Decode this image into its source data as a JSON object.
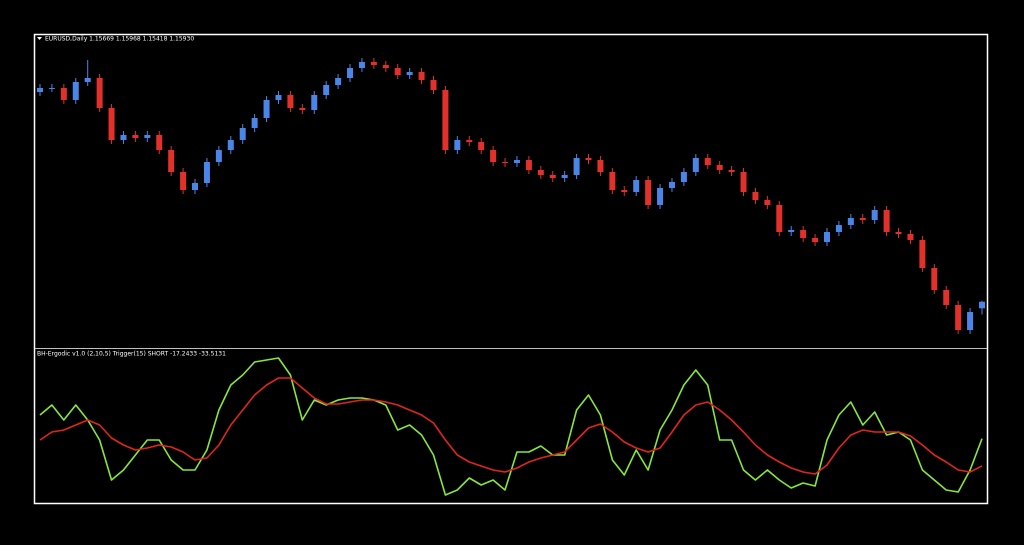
{
  "chart_data": [
    {
      "type": "candlestick",
      "title": "EURUSD,Daily  1.15669 1.15968 1.15418 1.15930",
      "up_color": "#4a86e8",
      "down_color": "#e2302a",
      "ylim": [
        1.1408,
        1.266
      ],
      "open": [
        1.2432,
        1.2448,
        1.2448,
        1.24,
        1.2472,
        1.2488,
        1.2368,
        1.224,
        1.226,
        1.2248,
        1.226,
        1.22,
        1.2112,
        1.204,
        1.2068,
        1.2152,
        1.22,
        1.224,
        1.2288,
        1.2328,
        1.24,
        1.242,
        1.2368,
        1.236,
        1.242,
        1.246,
        1.2488,
        1.2528,
        1.2552,
        1.254,
        1.2528,
        1.25,
        1.2512,
        1.248,
        1.244,
        1.22,
        1.224,
        1.2232,
        1.22,
        1.2152,
        1.2148,
        1.216,
        1.212,
        1.21,
        1.2088,
        1.21,
        1.2168,
        1.216,
        1.2112,
        1.204,
        1.2032,
        1.208,
        1.198,
        1.2048,
        1.2072,
        1.2112,
        1.2168,
        1.214,
        1.212,
        1.2112,
        1.2032,
        1.2,
        1.198,
        1.1872,
        1.188,
        1.1848,
        1.1832,
        1.1872,
        1.19,
        1.1928,
        1.192,
        1.196,
        1.1872,
        1.1864,
        1.184,
        1.1728,
        1.164,
        1.158,
        1.148,
        1.15669
      ],
      "high": [
        1.2464,
        1.2464,
        1.2464,
        1.2488,
        1.256,
        1.2504,
        1.2384,
        1.2276,
        1.2276,
        1.2276,
        1.2276,
        1.2216,
        1.2128,
        1.2084,
        1.2168,
        1.2216,
        1.2256,
        1.2304,
        1.2344,
        1.2416,
        1.2436,
        1.2436,
        1.2384,
        1.2436,
        1.2476,
        1.2504,
        1.2544,
        1.2568,
        1.2568,
        1.2556,
        1.2544,
        1.2528,
        1.2528,
        1.2496,
        1.2456,
        1.2256,
        1.2256,
        1.2248,
        1.2216,
        1.2168,
        1.2176,
        1.2176,
        1.2136,
        1.2116,
        1.2116,
        1.2184,
        1.2184,
        1.2176,
        1.2128,
        1.2056,
        1.2096,
        1.2096,
        1.2064,
        1.2088,
        1.2128,
        1.2184,
        1.2184,
        1.2156,
        1.2136,
        1.2128,
        1.2048,
        1.2016,
        1.1996,
        1.1896,
        1.1896,
        1.1864,
        1.1888,
        1.1916,
        1.1944,
        1.1944,
        1.1976,
        1.1976,
        1.1888,
        1.188,
        1.1856,
        1.1744,
        1.1656,
        1.1596,
        1.1568,
        1.15968
      ],
      "low": [
        1.2416,
        1.2432,
        1.2384,
        1.2384,
        1.2456,
        1.2352,
        1.2224,
        1.2224,
        1.2232,
        1.2232,
        1.2184,
        1.2096,
        1.2024,
        1.2024,
        1.2052,
        1.2136,
        1.2184,
        1.2224,
        1.2272,
        1.2312,
        1.2384,
        1.2352,
        1.2344,
        1.2344,
        1.2404,
        1.2444,
        1.2472,
        1.2512,
        1.2524,
        1.2512,
        1.2484,
        1.2484,
        1.2464,
        1.2424,
        1.2184,
        1.2184,
        1.2216,
        1.2184,
        1.2136,
        1.2132,
        1.2132,
        1.2104,
        1.2084,
        1.2072,
        1.2072,
        1.2084,
        1.2144,
        1.2096,
        1.2024,
        1.2016,
        1.2016,
        1.1964,
        1.1964,
        1.2032,
        1.2056,
        1.2096,
        1.2124,
        1.2104,
        1.2096,
        1.2016,
        1.1984,
        1.1964,
        1.1856,
        1.1856,
        1.1832,
        1.1816,
        1.1816,
        1.1856,
        1.1884,
        1.1904,
        1.1904,
        1.1856,
        1.1848,
        1.1824,
        1.1712,
        1.1624,
        1.1564,
        1.1464,
        1.1464,
        1.15418
      ],
      "close": [
        1.2448,
        1.2448,
        1.24,
        1.2472,
        1.2488,
        1.2368,
        1.224,
        1.226,
        1.2248,
        1.226,
        1.22,
        1.2112,
        1.204,
        1.2068,
        1.2152,
        1.22,
        1.224,
        1.2288,
        1.2328,
        1.24,
        1.242,
        1.2368,
        1.236,
        1.242,
        1.246,
        1.2488,
        1.2528,
        1.2552,
        1.254,
        1.2528,
        1.25,
        1.2512,
        1.248,
        1.244,
        1.22,
        1.224,
        1.2232,
        1.22,
        1.2152,
        1.2148,
        1.216,
        1.212,
        1.21,
        1.2088,
        1.21,
        1.2168,
        1.216,
        1.2112,
        1.204,
        1.2032,
        1.208,
        1.198,
        1.2048,
        1.2072,
        1.2112,
        1.2168,
        1.214,
        1.212,
        1.2112,
        1.2032,
        1.2,
        1.198,
        1.1872,
        1.188,
        1.1848,
        1.1832,
        1.1872,
        1.19,
        1.1928,
        1.192,
        1.196,
        1.1872,
        1.1864,
        1.184,
        1.1728,
        1.164,
        1.158,
        1.148,
        1.1552,
        1.1593
      ]
    },
    {
      "type": "line",
      "title": "BH-Ergodic v1.0 (2,10,5) Trigger(15) SHORT -17.2433 -33.5131",
      "ylim": [
        -55.8,
        36
      ],
      "series": [
        {
          "color": "#86e83c",
          "values": [
            -3,
            3,
            -6,
            3,
            -6,
            -18,
            -42,
            -36,
            -27,
            -18,
            -18,
            -30,
            -36,
            -36,
            -24,
            0,
            15,
            21,
            28.8,
            30,
            31.2,
            21,
            -6,
            6,
            3,
            6,
            7.2,
            7.2,
            6,
            3,
            -12,
            -9,
            -15,
            -27,
            -51,
            -48,
            -40.8,
            -45,
            -42,
            -48,
            -25.2,
            -25.2,
            -21.6,
            -27,
            -27,
            0,
            9,
            -3,
            -30,
            -39,
            -24,
            -36,
            -12,
            0,
            15,
            24,
            15,
            -18,
            -18,
            -36,
            -42,
            -36,
            -42,
            -46.8,
            -43.8,
            -45.6,
            -18,
            -3,
            4.8,
            -9,
            -1.2,
            -15,
            -13.2,
            -18,
            -36,
            -42,
            -48,
            -49.2,
            -36,
            -17.2433
          ]
        },
        {
          "color": "#e0261c",
          "values": [
            -18,
            -13.2,
            -12,
            -9,
            -6,
            -9,
            -16.8,
            -21,
            -24,
            -22.8,
            -21,
            -22.2,
            -25.2,
            -30,
            -28.8,
            -21,
            -9,
            0,
            9,
            15,
            19.2,
            19.2,
            13.2,
            7.2,
            3.6,
            3.6,
            4.8,
            6,
            6,
            4.8,
            3,
            0,
            -3,
            -7.8,
            -18,
            -27,
            -31.2,
            -33.6,
            -36,
            -37.2,
            -34.8,
            -31.2,
            -28.8,
            -27,
            -25.2,
            -18,
            -10.8,
            -8.4,
            -13.2,
            -19.2,
            -22.8,
            -25.2,
            -22.8,
            -13.2,
            -3,
            3,
            4.8,
            0,
            -6,
            -13.2,
            -21,
            -27,
            -31.2,
            -34.8,
            -37.2,
            -38.4,
            -33,
            -22.8,
            -15,
            -12,
            -13.2,
            -13.2,
            -13.2,
            -15.6,
            -21,
            -27,
            -31.2,
            -36,
            -37.2,
            -33.5131
          ]
        }
      ]
    }
  ]
}
